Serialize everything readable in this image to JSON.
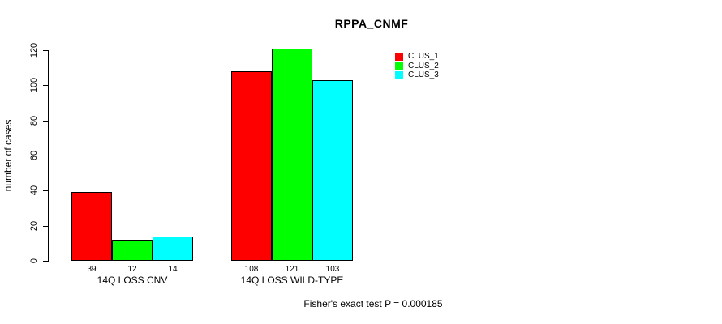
{
  "title": "RPPA_CNMF",
  "footer": {
    "note": "Fisher's exact test P = 0.000185"
  },
  "chart_data": {
    "type": "bar",
    "title": "RPPA_CNMF",
    "xlabel": "",
    "ylabel": "number of cases",
    "ylim": [
      0,
      120
    ],
    "yticks": [
      0,
      20,
      40,
      60,
      80,
      100,
      120
    ],
    "categories": [
      "14Q LOSS CNV",
      "14Q LOSS WILD-TYPE"
    ],
    "series": [
      {
        "name": "CLUS_1",
        "color": "#ff0000",
        "values": [
          39,
          108
        ]
      },
      {
        "name": "CLUS_2",
        "color": "#00ff00",
        "values": [
          12,
          121
        ]
      },
      {
        "name": "CLUS_3",
        "color": "#00ffff",
        "values": [
          14,
          103
        ]
      }
    ],
    "bar_value_labels": [
      [
        39,
        12,
        14
      ],
      [
        108,
        121,
        103
      ]
    ],
    "legend": [
      "CLUS_1",
      "CLUS_2",
      "CLUS_3"
    ],
    "legend_position": "top-right",
    "grid": false,
    "annotation": "Fisher's exact test P = 0.000185"
  }
}
